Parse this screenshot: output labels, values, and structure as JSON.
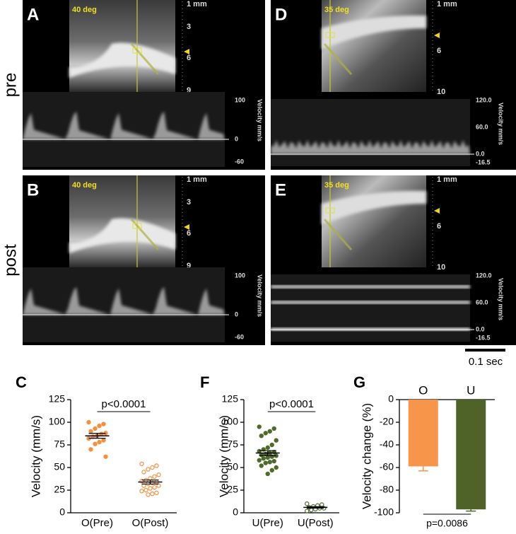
{
  "ultrasound": {
    "row_labels": [
      "pre",
      "post"
    ],
    "panels": [
      {
        "letter": "A",
        "angle": "40 deg",
        "depth_ticks": [
          "1 mm",
          "3",
          "6",
          "9"
        ],
        "velocity_label": "Velocity mm/s",
        "velocity_ticks": [
          "100",
          "0",
          "-60"
        ]
      },
      {
        "letter": "D",
        "angle": "35 deg",
        "depth_ticks": [
          "1 mm",
          "6",
          "10"
        ],
        "velocity_label": "Velocity mm/s",
        "velocity_ticks": [
          "120.0",
          "60.0",
          "0.0",
          "-16.5"
        ]
      },
      {
        "letter": "B",
        "angle": "40 deg",
        "depth_ticks": [
          "1 mm",
          "3",
          "6",
          "9"
        ],
        "velocity_label": "Velocity mm/s",
        "velocity_ticks": [
          "100",
          "0",
          "-60"
        ]
      },
      {
        "letter": "E",
        "angle": "35 deg",
        "depth_ticks": [
          "1 mm",
          "6",
          "10"
        ],
        "velocity_label": "Velocity mm/s",
        "velocity_ticks": [
          "120.0",
          "60.0",
          "0.0",
          "-16.5"
        ]
      }
    ],
    "scale_bar": "0.1 sec"
  },
  "chart_data": [
    {
      "type": "scatter",
      "letter": "C",
      "ylabel": "Velocity (mm/s)",
      "categories": [
        "O(Pre)",
        "O(Post)"
      ],
      "colors": [
        "#f2923f",
        "#f2923f"
      ],
      "points": [
        [
          100,
          98,
          96,
          93,
          90,
          88,
          87,
          85,
          84,
          82,
          80,
          78,
          76,
          70,
          62
        ],
        [
          54,
          52,
          50,
          48,
          45,
          42,
          40,
          38,
          36,
          35,
          34,
          33,
          32,
          30,
          30,
          28,
          27,
          25,
          24,
          22,
          21,
          20
        ]
      ],
      "means": [
        85,
        34
      ],
      "errors": [
        2.7,
        2.2
      ],
      "annotation": "p<0.0001",
      "ylim": [
        0,
        125
      ],
      "yticks": [
        0,
        25,
        50,
        75,
        100,
        125
      ]
    },
    {
      "type": "scatter",
      "letter": "F",
      "ylabel": "Velocity (mm/s)",
      "categories": [
        "U(Pre)",
        "U(Post)"
      ],
      "colors": [
        "#4f6a2a",
        "#4f6a2a"
      ],
      "points": [
        [
          95,
          93,
          90,
          88,
          85,
          80,
          75,
          72,
          70,
          68,
          67,
          66,
          65,
          64,
          63,
          62,
          61,
          60,
          58,
          57,
          56,
          55,
          52,
          50,
          47,
          43
        ],
        [
          10,
          9,
          8,
          7,
          6,
          5,
          5,
          4,
          3,
          2
        ]
      ],
      "means": [
        66,
        6
      ],
      "errors": [
        2.7,
        0.8
      ],
      "annotation": "p<0.0001",
      "ylim": [
        0,
        125
      ],
      "yticks": [
        0,
        25,
        50,
        75,
        100,
        125
      ]
    },
    {
      "type": "bar",
      "letter": "G",
      "ylabel": "Velocity change (%)",
      "categories": [
        "O",
        "U"
      ],
      "colors": [
        "#f7964a",
        "#4f6228"
      ],
      "values": [
        -59,
        -97
      ],
      "errors": [
        4,
        1.5
      ],
      "annotation": "p=0.0086",
      "ylim": [
        -100,
        0
      ],
      "yticks": [
        -100,
        -80,
        -60,
        -40,
        -20,
        0
      ]
    }
  ]
}
